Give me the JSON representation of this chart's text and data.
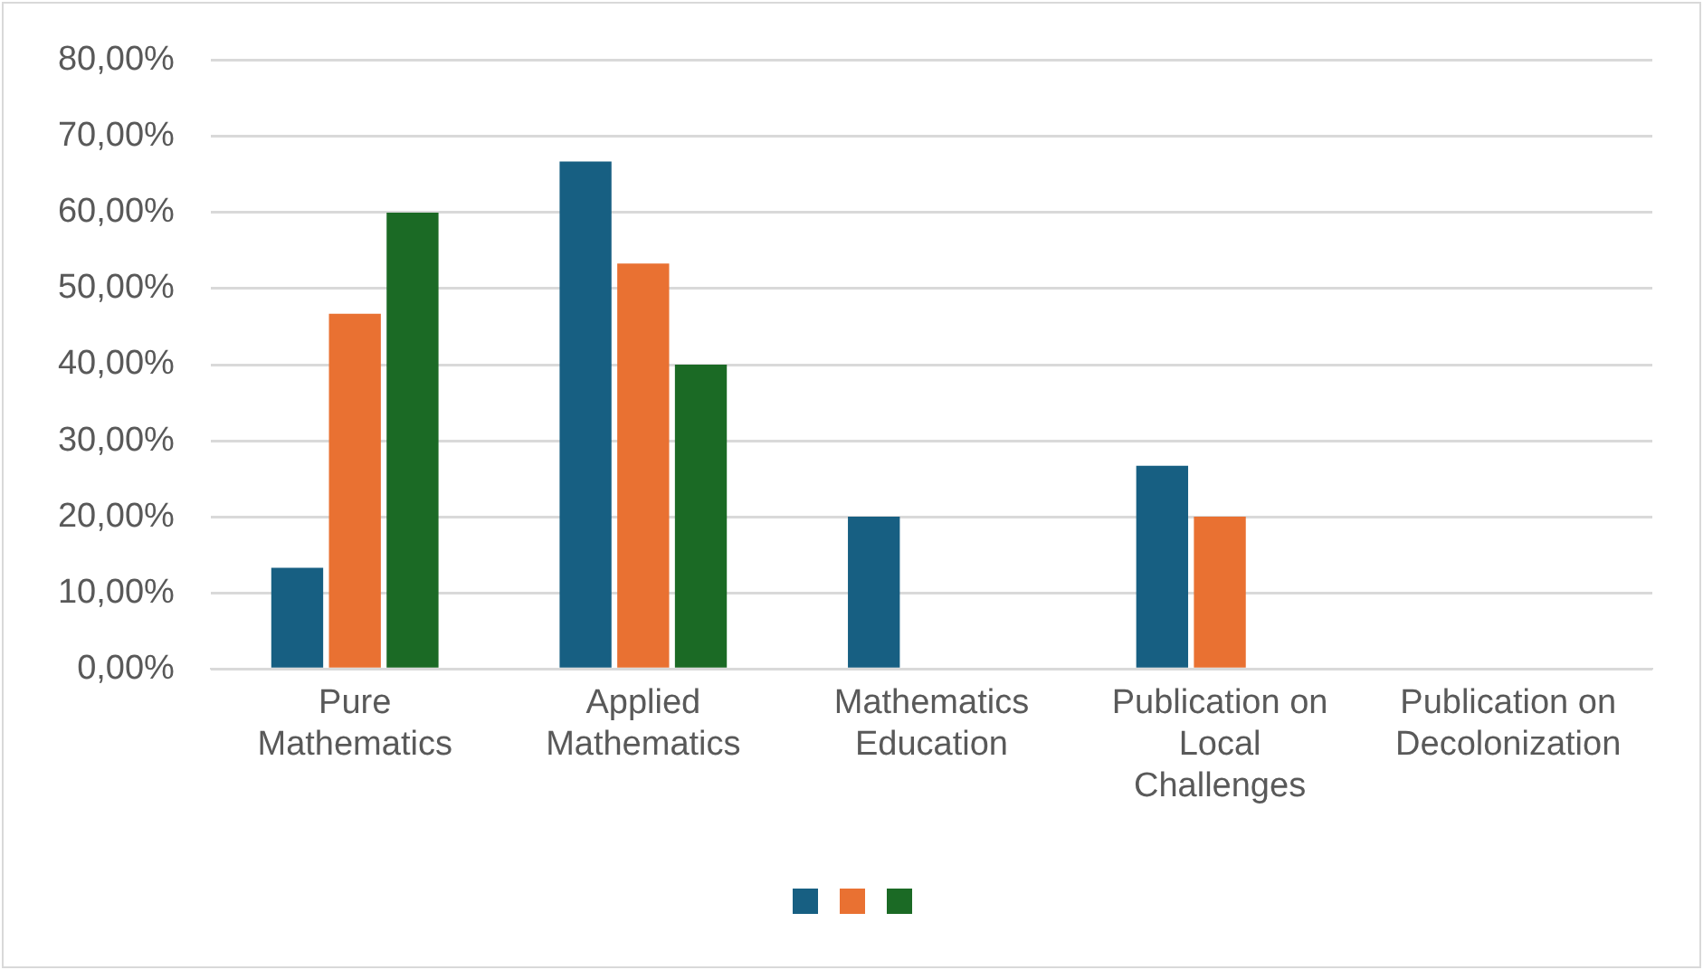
{
  "chart_data": {
    "type": "bar",
    "categories": [
      "Pure Mathematics",
      "Applied Mathematics",
      "Mathematics Education",
      "Publication on Local Challenges",
      "Publication on Decolonization"
    ],
    "series": [
      {
        "color": "#175f82",
        "values": [
          13.3,
          66.7,
          20,
          26.7,
          0
        ]
      },
      {
        "color": "#e97132",
        "values": [
          46.7,
          53.3,
          0,
          20,
          0
        ]
      },
      {
        "color": "#1b6a25",
        "values": [
          60,
          40,
          0,
          0,
          0
        ]
      }
    ],
    "ylim": [
      0,
      80
    ],
    "yticks": [
      {
        "value": 0,
        "label": "0,00%"
      },
      {
        "value": 10,
        "label": "10,00%"
      },
      {
        "value": 20,
        "label": "20,00%"
      },
      {
        "value": 30,
        "label": "30,00%"
      },
      {
        "value": 40,
        "label": "40,00%"
      },
      {
        "value": 50,
        "label": "50,00%"
      },
      {
        "value": 60,
        "label": "60,00%"
      },
      {
        "value": 70,
        "label": "70,00%"
      },
      {
        "value": 80,
        "label": "80,00%"
      }
    ],
    "grid": "y"
  }
}
